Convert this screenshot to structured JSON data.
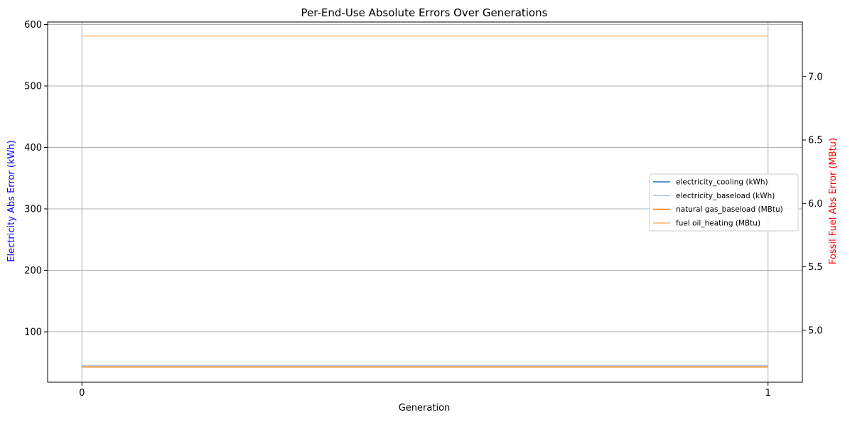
{
  "chart_data": {
    "type": "line",
    "title": "Per-End-Use Absolute Errors Over Generations",
    "xlabel": "Generation",
    "ylabel_left": "Electricity Abs Error (kWh)",
    "ylabel_right": "Fossil Fuel Abs Error (MBtu)",
    "xlim": [
      -0.05,
      1.05
    ],
    "ylim_left": [
      18,
      604
    ],
    "ylim_right": [
      4.59,
      7.43
    ],
    "xticks": [
      0,
      1
    ],
    "yticks_left": [
      100,
      200,
      300,
      400,
      500,
      600
    ],
    "yticks_right": [
      5.0,
      5.5,
      6.0,
      6.5,
      7.0
    ],
    "grid": true,
    "legend_position": "center-right",
    "series": [
      {
        "name": "electricity_cooling (kWh)",
        "axis": "left",
        "color": "#1f77b4",
        "x": [
          0,
          1
        ],
        "y": [
          45,
          45
        ]
      },
      {
        "name": "electricity_baseload (kWh)",
        "axis": "left",
        "color": "#aec7e8",
        "x": [
          0,
          1
        ],
        "y": [
          45,
          45
        ]
      },
      {
        "name": "natural gas_baseload (MBtu)",
        "axis": "right",
        "color": "#ff7f0e",
        "x": [
          0,
          1
        ],
        "y": [
          4.71,
          4.71
        ]
      },
      {
        "name": "fuel oil_heating (MBtu)",
        "axis": "right",
        "color": "#ffbb78",
        "x": [
          0,
          1
        ],
        "y": [
          7.32,
          7.32
        ]
      }
    ],
    "colors": {
      "left_label": "#0000ff",
      "right_label": "#ff0000",
      "grid": "#b0b0b0"
    }
  }
}
